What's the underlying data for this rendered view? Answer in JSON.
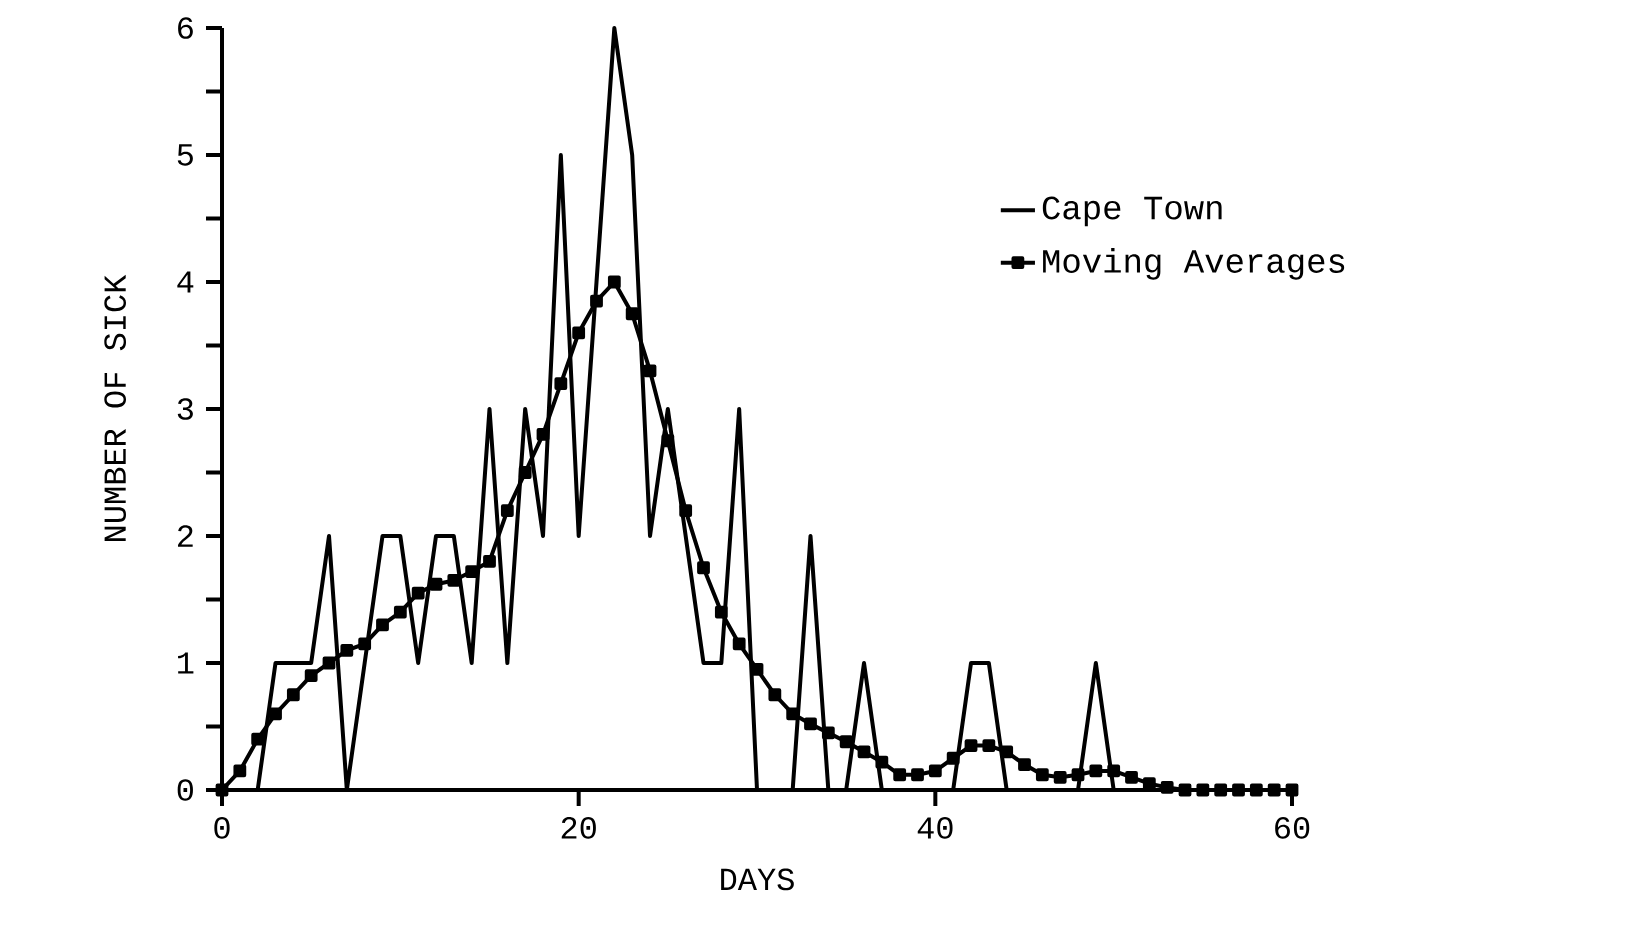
{
  "chart_data": {
    "type": "line",
    "xlabel": "DAYS",
    "ylabel": "NUMBER OF SICK",
    "x": [
      0,
      1,
      2,
      3,
      4,
      5,
      6,
      7,
      8,
      9,
      10,
      11,
      12,
      13,
      14,
      15,
      16,
      17,
      18,
      19,
      20,
      21,
      22,
      23,
      24,
      25,
      26,
      27,
      28,
      29,
      30,
      31,
      32,
      33,
      34,
      35,
      36,
      37,
      38,
      39,
      40,
      41,
      42,
      43,
      44,
      45,
      46,
      47,
      48,
      49,
      50,
      51,
      52,
      53,
      54,
      55,
      56,
      57,
      58,
      59,
      60
    ],
    "series": [
      {
        "name": "Cape Town",
        "color": "#000000",
        "marker": "none",
        "values": [
          0,
          0,
          0,
          1,
          1,
          1,
          2,
          0,
          1,
          2,
          2,
          1,
          2,
          2,
          1,
          3,
          1,
          3,
          2,
          5,
          2,
          4,
          6,
          5,
          2,
          3,
          2,
          1,
          1,
          3,
          0,
          0,
          0,
          2,
          0,
          0,
          1,
          0,
          0,
          0,
          0,
          0,
          1,
          1,
          0,
          0,
          0,
          0,
          0,
          1,
          0,
          0,
          0,
          0,
          0,
          0,
          0,
          0,
          0,
          0,
          0
        ]
      },
      {
        "name": "Moving Averages",
        "color": "#000000",
        "marker": "square",
        "values": [
          0,
          0.15,
          0.4,
          0.6,
          0.75,
          0.9,
          1.0,
          1.1,
          1.15,
          1.3,
          1.4,
          1.55,
          1.62,
          1.65,
          1.72,
          1.8,
          2.2,
          2.5,
          2.8,
          3.2,
          3.6,
          3.85,
          4.0,
          3.75,
          3.3,
          2.75,
          2.2,
          1.75,
          1.4,
          1.15,
          0.95,
          0.75,
          0.6,
          0.52,
          0.45,
          0.38,
          0.3,
          0.22,
          0.12,
          0.12,
          0.15,
          0.25,
          0.35,
          0.35,
          0.3,
          0.2,
          0.12,
          0.1,
          0.12,
          0.15,
          0.15,
          0.1,
          0.05,
          0.02,
          0,
          0,
          0,
          0,
          0,
          0,
          0
        ]
      }
    ],
    "xlim": [
      0,
      60
    ],
    "ylim": [
      0,
      6
    ],
    "xticks": [
      0,
      20,
      40,
      60
    ],
    "yticks": [
      0,
      1,
      2,
      3,
      4,
      5,
      6
    ],
    "grid": false,
    "legend": "top right",
    "line_style": "solid"
  }
}
